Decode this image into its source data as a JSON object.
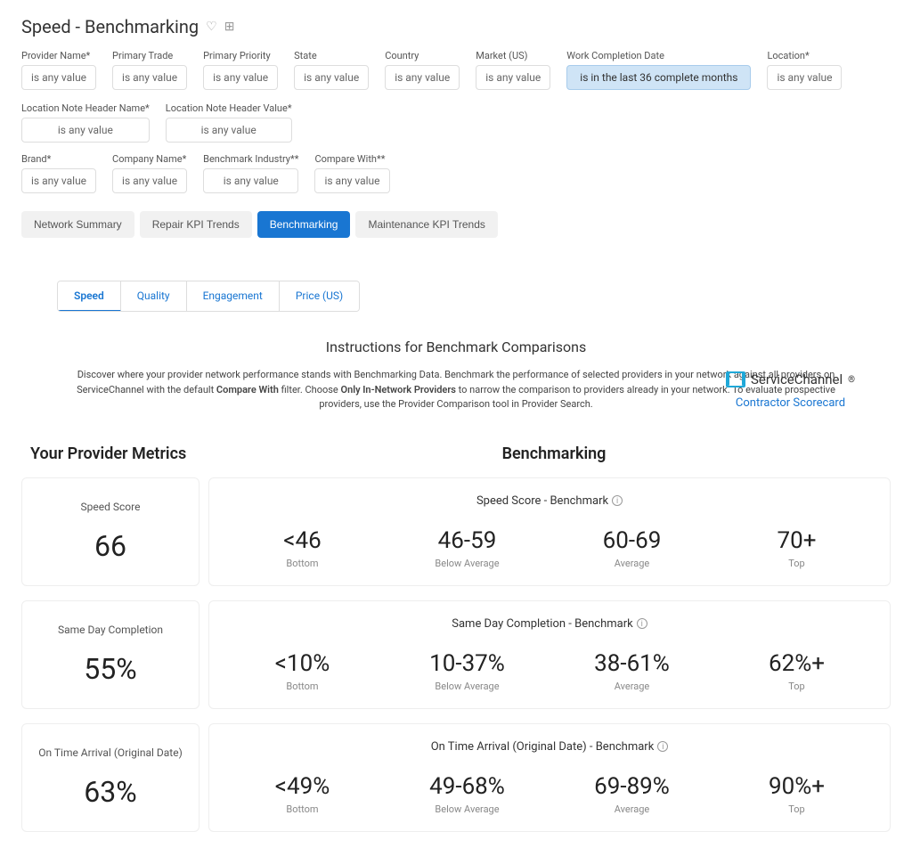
{
  "page": {
    "title": "Speed - Benchmarking"
  },
  "filters_row1": [
    {
      "label": "Provider Name*",
      "value": "is any value",
      "highlighted": false
    },
    {
      "label": "Primary Trade",
      "value": "is any value",
      "highlighted": false
    },
    {
      "label": "Primary Priority",
      "value": "is any value",
      "highlighted": false
    },
    {
      "label": "State",
      "value": "is any value",
      "highlighted": false
    },
    {
      "label": "Country",
      "value": "is any value",
      "highlighted": false
    },
    {
      "label": "Market (US)",
      "value": "is any value",
      "highlighted": false
    },
    {
      "label": "Work Completion Date",
      "value": "is in the last 36 complete months",
      "highlighted": true
    },
    {
      "label": "Location*",
      "value": "is any value",
      "highlighted": false
    },
    {
      "label": "Location Note Header Name*",
      "value": "is any value",
      "highlighted": false
    },
    {
      "label": "Location Note Header Value*",
      "value": "is any value",
      "highlighted": false
    }
  ],
  "filters_row2": [
    {
      "label": "Brand*",
      "value": "is any value",
      "highlighted": false
    },
    {
      "label": "Company Name*",
      "value": "is any value",
      "highlighted": false
    },
    {
      "label": "Benchmark Industry**",
      "value": "is any value",
      "highlighted": false
    },
    {
      "label": "Compare With**",
      "value": "is any value",
      "highlighted": false
    }
  ],
  "main_tabs": [
    {
      "label": "Network Summary",
      "active": false
    },
    {
      "label": "Repair KPI Trends",
      "active": false
    },
    {
      "label": "Benchmarking",
      "active": true
    },
    {
      "label": "Maintenance KPI Trends",
      "active": false
    }
  ],
  "brand": {
    "name": "ServiceChannel",
    "sub": "Contractor Scorecard"
  },
  "sub_tabs": [
    {
      "label": "Speed",
      "active": true
    },
    {
      "label": "Quality",
      "active": false
    },
    {
      "label": "Engagement",
      "active": false
    },
    {
      "label": "Price (US)",
      "active": false
    }
  ],
  "instructions": {
    "title": "Instructions for Benchmark Comparisons",
    "text_prefix": "Discover where your provider network performance stands with Benchmarking Data. Benchmark the performance of selected providers in your network against all providers on ServiceChannel with the default ",
    "bold1": "Compare With",
    "text_mid": " filter. Choose ",
    "bold2": "Only In-Network Providers",
    "text_suffix": " to narrow the comparison to providers already in your network. To evaluate prospective providers, use the Provider Comparison tool in Provider Search."
  },
  "section_headers": {
    "left": "Your Provider Metrics",
    "right": "Benchmarking"
  },
  "band_labels": {
    "bottom": "Bottom",
    "below": "Below Average",
    "average": "Average",
    "top": "Top"
  },
  "metrics": [
    {
      "title": "Speed Score",
      "value": "66",
      "bench_title": "Speed Score - Benchmark",
      "bands": [
        {
          "value": "<46",
          "label": "Bottom"
        },
        {
          "value": "46-59",
          "label": "Below Average"
        },
        {
          "value": "60-69",
          "label": "Average"
        },
        {
          "value": "70+",
          "label": "Top"
        }
      ]
    },
    {
      "title": "Same Day Completion",
      "value": "55%",
      "bench_title": "Same Day Completion - Benchmark",
      "bands": [
        {
          "value": "<10%",
          "label": "Bottom"
        },
        {
          "value": "10-37%",
          "label": "Below Average"
        },
        {
          "value": "38-61%",
          "label": "Average"
        },
        {
          "value": "62%+",
          "label": "Top"
        }
      ]
    },
    {
      "title": "On Time Arrival (Original Date)",
      "value": "63%",
      "bench_title": "On Time Arrival (Original Date) - Benchmark",
      "bands": [
        {
          "value": "<49%",
          "label": "Bottom"
        },
        {
          "value": "49-68%",
          "label": "Below Average"
        },
        {
          "value": "69-89%",
          "label": "Average"
        },
        {
          "value": "90%+",
          "label": "Top"
        }
      ]
    }
  ],
  "colors": {
    "primary": "#1976d2",
    "highlight_bg": "#cfe4f6",
    "border": "#dddddd",
    "text": "#333333",
    "muted": "#888888"
  }
}
